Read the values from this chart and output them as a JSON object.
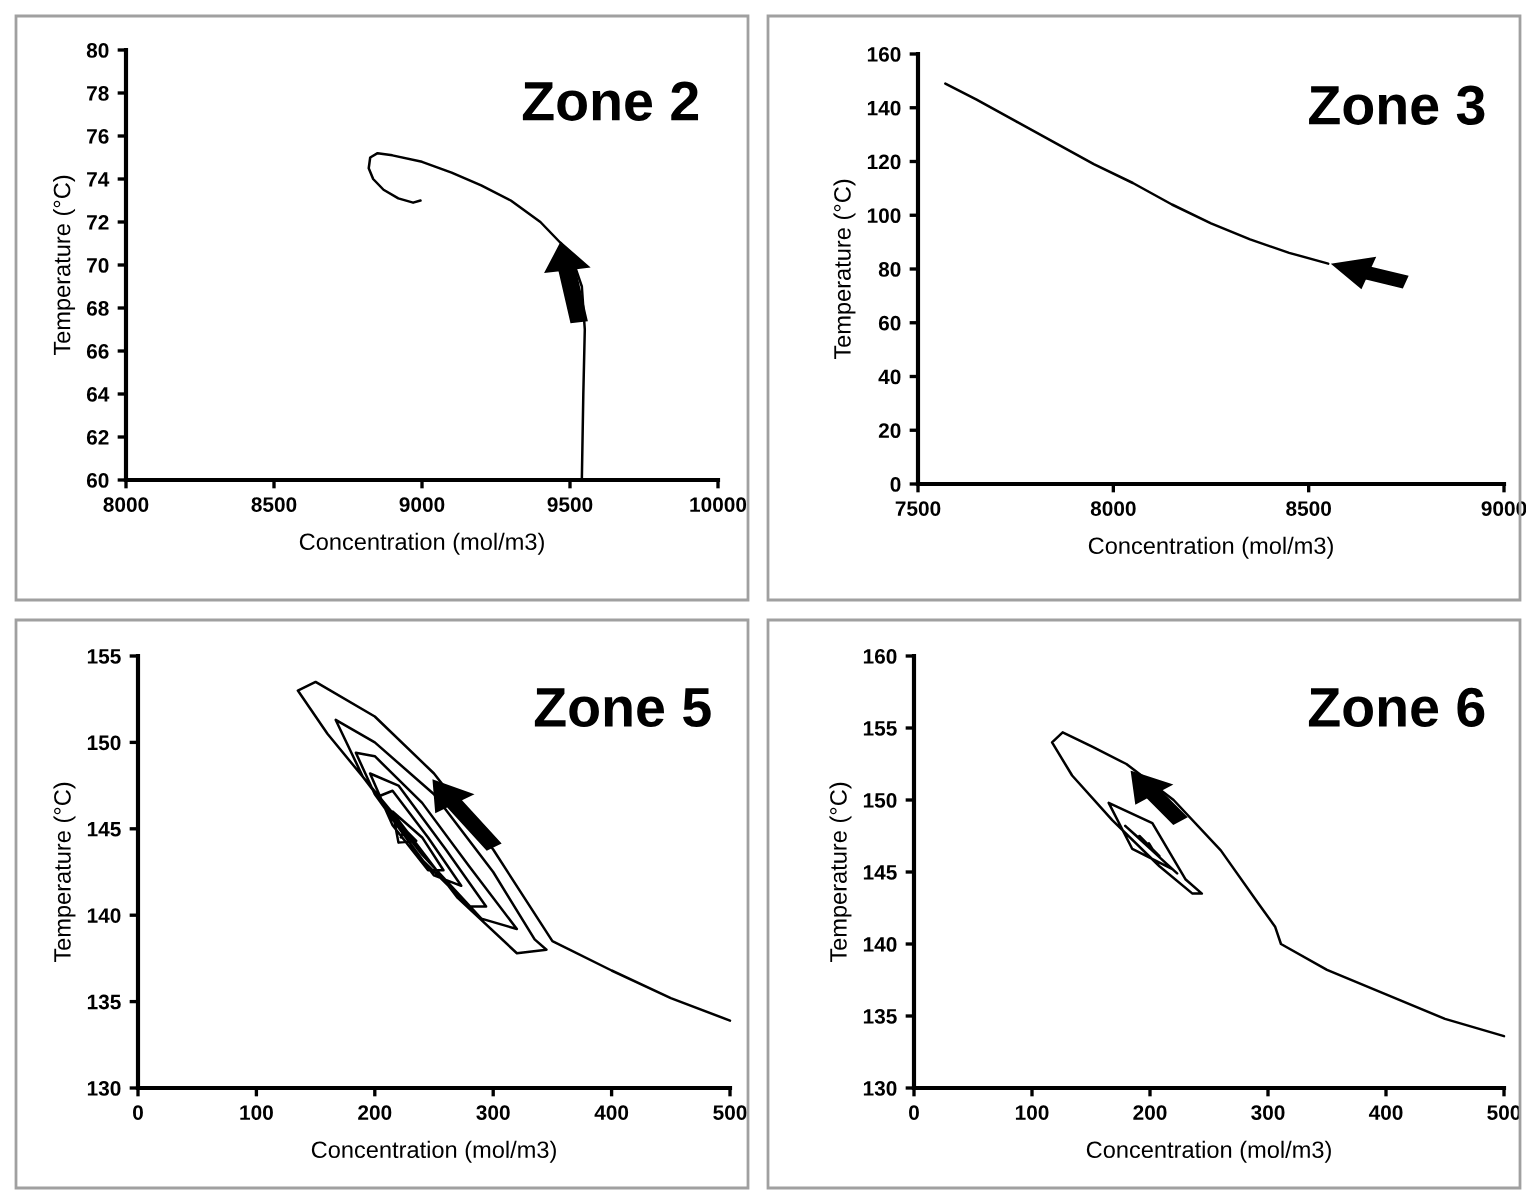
{
  "chart_data": [
    {
      "type": "line",
      "title": "Zone 2",
      "xlabel": "Concentration (mol/m3)",
      "ylabel": "Temperature (°C)",
      "xlim": [
        8000,
        10000
      ],
      "xticks": [
        8000,
        8500,
        9000,
        9500,
        10000
      ],
      "ylim": [
        60,
        80
      ],
      "yticks": [
        60,
        62,
        64,
        66,
        68,
        70,
        72,
        74,
        76,
        78,
        80
      ],
      "series": [
        {
          "color": "#000000",
          "x": [
            9540,
            9545,
            9550,
            9540,
            9510,
            9470,
            9400,
            9300,
            9200,
            9100,
            9000,
            8900,
            8850,
            8825,
            8820,
            8835,
            8870,
            8920,
            8970,
            8995
          ],
          "values": [
            60,
            64,
            67,
            69,
            70.2,
            71,
            72,
            73,
            73.7,
            74.3,
            74.8,
            75.1,
            75.2,
            75,
            74.5,
            74,
            73.5,
            73.1,
            72.9,
            73
          ]
        }
      ]
    },
    {
      "type": "line",
      "title": "Zone 3",
      "xlabel": "Concentration (mol/m3)",
      "ylabel": "Temperature (°C)",
      "xlim": [
        7500,
        9000
      ],
      "xticks": [
        7500,
        8000,
        8500,
        9000
      ],
      "ylim": [
        0,
        160
      ],
      "yticks": [
        0,
        20,
        40,
        60,
        80,
        100,
        120,
        140,
        160
      ],
      "series": [
        {
          "color": "#000000",
          "x": [
            7570,
            7650,
            7750,
            7850,
            7950,
            8050,
            8150,
            8250,
            8350,
            8450,
            8550
          ],
          "values": [
            149,
            143,
            135,
            127,
            119,
            112,
            104,
            97,
            91,
            86,
            82
          ]
        }
      ]
    },
    {
      "type": "line",
      "title": "Zone 5",
      "xlabel": "Concentration (mol/m3)",
      "ylabel": "Temperature (°C)",
      "xlim": [
        0,
        500
      ],
      "xticks": [
        0,
        100,
        200,
        300,
        400,
        500
      ],
      "ylim": [
        130,
        155
      ],
      "yticks": [
        130,
        135,
        140,
        145,
        150,
        155
      ],
      "series": [
        {
          "color": "#000000",
          "x": [
            500,
            450,
            400,
            350,
            300,
            250,
            200,
            150,
            135,
            160,
            220,
            270,
            320,
            345,
            335,
            300,
            250,
            200,
            167,
            190,
            240,
            290,
            320,
            280,
            240,
            200,
            184,
            200,
            240,
            280,
            294,
            260,
            220,
            196,
            210,
            250,
            273,
            245,
            215,
            204,
            215,
            245,
            258,
            240,
            215,
            220,
            235,
            225,
            222
          ],
          "values": [
            133.9,
            135.2,
            136.8,
            138.5,
            143.8,
            148.2,
            151.5,
            153.5,
            153,
            150.5,
            145.5,
            141,
            137.8,
            138,
            138.6,
            142.5,
            147,
            150,
            151.3,
            148,
            143.5,
            139.8,
            139.2,
            142.8,
            146.5,
            149.2,
            149.4,
            147,
            143.2,
            140.5,
            140.5,
            143.8,
            147.5,
            148.2,
            146,
            142.3,
            141.7,
            144.5,
            147.2,
            146.9,
            145.2,
            142.6,
            142.6,
            144.5,
            146,
            144.2,
            144.3,
            145,
            144.5
          ]
        }
      ]
    },
    {
      "type": "line",
      "title": "Zone 6",
      "xlabel": "Concentration (mol/m3)",
      "ylabel": "Temperature (°C)",
      "xlim": [
        0,
        500
      ],
      "xticks": [
        0,
        100,
        200,
        300,
        400,
        500
      ],
      "ylim": [
        130,
        160
      ],
      "yticks": [
        130,
        135,
        140,
        145,
        150,
        155,
        160
      ],
      "series": [
        {
          "color": "#000000",
          "x": [
            500,
            450,
            400,
            350,
            311,
            306,
            292,
            260,
            220,
            180,
            151,
            126,
            117,
            134,
            168,
            208,
            236,
            244,
            230,
            202,
            165,
            185,
            219,
            223,
            179,
            208,
            191,
            202,
            199
          ],
          "values": [
            133.6,
            134.8,
            136.5,
            138.2,
            140,
            141.2,
            142.8,
            146.5,
            150,
            152.5,
            153.7,
            154.7,
            154,
            151.7,
            148.6,
            145.4,
            143.5,
            143.5,
            144.5,
            148.4,
            149.8,
            146.6,
            145.2,
            144.9,
            148.2,
            146.1,
            147.5,
            146.6,
            147
          ]
        }
      ]
    }
  ]
}
